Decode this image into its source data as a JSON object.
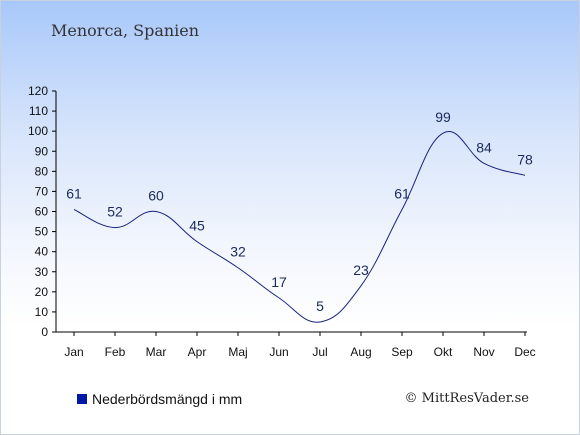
{
  "title": "Menorca, Spanien",
  "legend": {
    "label": "Nederbördsmängd i mm",
    "color": "#0018a8"
  },
  "credit": "© MittResVader.se",
  "chart_data": {
    "type": "line",
    "categories": [
      "Jan",
      "Feb",
      "Mar",
      "Apr",
      "Maj",
      "Jun",
      "Jul",
      "Aug",
      "Sep",
      "Okt",
      "Nov",
      "Dec"
    ],
    "series": [
      {
        "name": "Nederbördsmängd i mm",
        "values": [
          61,
          52,
          60,
          45,
          32,
          17,
          5,
          23,
          61,
          99,
          84,
          78
        ]
      }
    ],
    "ylim": [
      0,
      120
    ],
    "yticks": [
      0,
      10,
      20,
      30,
      40,
      50,
      60,
      70,
      80,
      90,
      100,
      110,
      120
    ],
    "line_color": "#1a237e",
    "grid": false,
    "legend_position": "bottom-left"
  }
}
